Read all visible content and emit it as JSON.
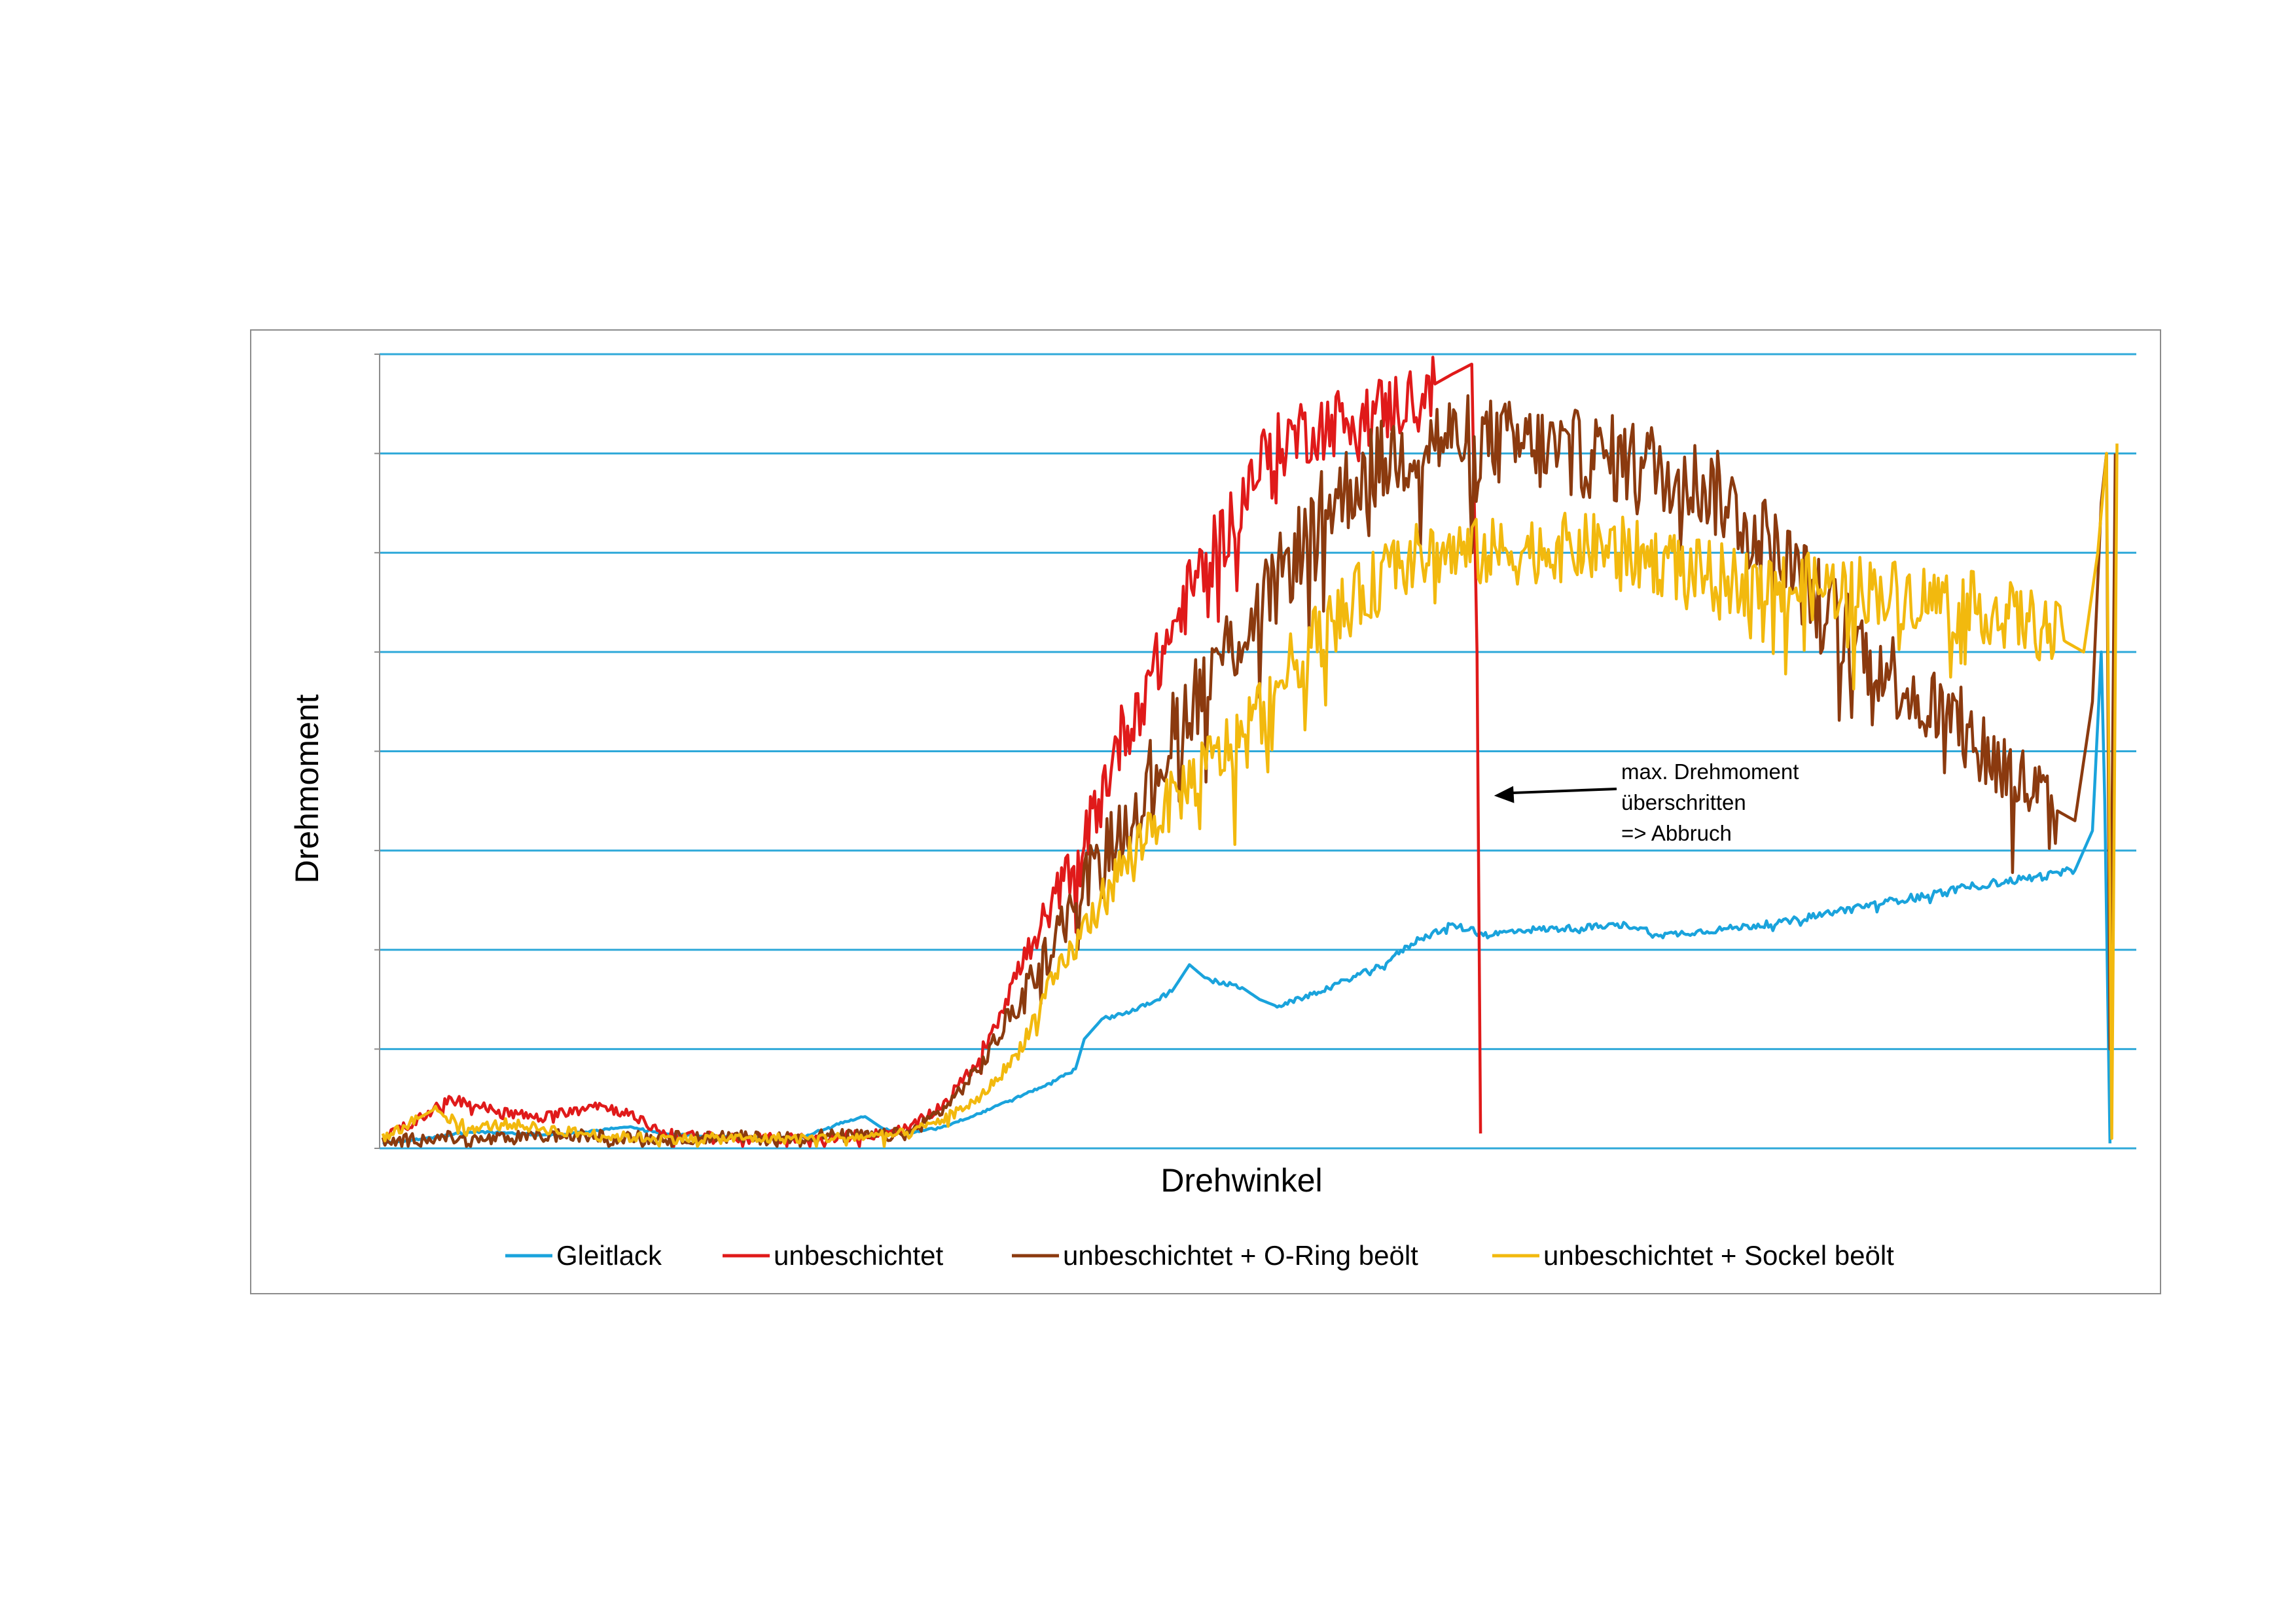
{
  "chart_data": {
    "type": "line",
    "xlabel": "Drehwinkel",
    "ylabel": "Drehmoment",
    "x_domain": [
      0,
      100
    ],
    "y_domain": [
      0,
      8
    ],
    "gridline_count": 8,
    "gridline_color": "#2fa9d9",
    "legend_position": "bottom",
    "series": [
      {
        "name": "Gleitlack",
        "color": "#1aa3dc",
        "noise": 0.06,
        "points": [
          [
            0,
            0.05
          ],
          [
            2.5,
            0.1
          ],
          [
            5,
            0.17
          ],
          [
            7.5,
            0.15
          ],
          [
            10,
            0.13
          ],
          [
            14,
            0.22
          ],
          [
            16,
            0.15
          ],
          [
            19,
            0.12
          ],
          [
            22,
            0.1
          ],
          [
            24,
            0.12
          ],
          [
            26,
            0.25
          ],
          [
            27.5,
            0.32
          ],
          [
            28.5,
            0.2
          ],
          [
            30,
            0.15
          ],
          [
            32,
            0.22
          ],
          [
            34,
            0.35
          ],
          [
            36,
            0.5
          ],
          [
            38,
            0.65
          ],
          [
            39.5,
            0.8
          ],
          [
            40,
            1.1
          ],
          [
            41,
            1.3
          ],
          [
            43,
            1.4
          ],
          [
            45,
            1.58
          ],
          [
            46,
            1.85
          ],
          [
            47,
            1.7
          ],
          [
            49,
            1.62
          ],
          [
            50,
            1.5
          ],
          [
            51,
            1.43
          ],
          [
            53,
            1.55
          ],
          [
            55,
            1.7
          ],
          [
            57,
            1.85
          ],
          [
            59,
            2.1
          ],
          [
            61,
            2.25
          ],
          [
            63,
            2.15
          ],
          [
            65,
            2.2
          ],
          [
            68,
            2.22
          ],
          [
            71,
            2.25
          ],
          [
            73,
            2.15
          ],
          [
            76,
            2.2
          ],
          [
            80,
            2.28
          ],
          [
            84,
            2.43
          ],
          [
            88,
            2.55
          ],
          [
            91,
            2.65
          ],
          [
            95,
            2.75
          ],
          [
            96.5,
            2.8
          ],
          [
            97.5,
            3.2
          ],
          [
            98,
            5.0
          ],
          [
            98.2,
            3.5
          ],
          [
            98.5,
            0.05
          ]
        ]
      },
      {
        "name": "unbeschichtet",
        "color": "#e01a1a",
        "noise": 0.35,
        "points": [
          [
            0,
            0.1
          ],
          [
            2,
            0.3
          ],
          [
            4,
            0.5
          ],
          [
            6,
            0.4
          ],
          [
            9,
            0.3
          ],
          [
            12,
            0.45
          ],
          [
            14,
            0.35
          ],
          [
            16,
            0.15
          ],
          [
            18,
            0.12
          ],
          [
            21,
            0.1
          ],
          [
            24,
            0.1
          ],
          [
            26,
            0.12
          ],
          [
            28,
            0.14
          ],
          [
            30,
            0.2
          ],
          [
            32,
            0.45
          ],
          [
            34,
            0.9
          ],
          [
            36,
            1.7
          ],
          [
            38,
            2.4
          ],
          [
            40,
            3.1
          ],
          [
            42,
            4.1
          ],
          [
            44,
            4.8
          ],
          [
            46,
            5.6
          ],
          [
            48,
            6.2
          ],
          [
            50,
            6.9
          ],
          [
            52,
            7.2
          ],
          [
            54,
            7.3
          ],
          [
            56,
            7.4
          ],
          [
            58,
            7.5
          ],
          [
            60,
            7.7
          ],
          [
            61,
            7.8
          ],
          [
            62.1,
            7.9
          ],
          [
            62.4,
            5.0
          ],
          [
            62.6,
            0.15
          ]
        ]
      },
      {
        "name": "unbeschichtet + O-Ring beölt",
        "color": "#8b3a0f",
        "noise": 0.45,
        "points": [
          [
            0,
            0.05
          ],
          [
            3,
            0.12
          ],
          [
            5,
            0.08
          ],
          [
            7,
            0.1
          ],
          [
            10,
            0.13
          ],
          [
            13,
            0.12
          ],
          [
            16,
            0.1
          ],
          [
            19,
            0.12
          ],
          [
            22,
            0.1
          ],
          [
            25,
            0.13
          ],
          [
            28,
            0.12
          ],
          [
            30,
            0.15
          ],
          [
            32,
            0.4
          ],
          [
            34,
            0.8
          ],
          [
            36,
            1.4
          ],
          [
            38,
            2.0
          ],
          [
            40,
            2.7
          ],
          [
            42,
            3.2
          ],
          [
            44,
            3.8
          ],
          [
            46,
            4.5
          ],
          [
            48,
            5.0
          ],
          [
            50,
            5.4
          ],
          [
            52,
            6.0
          ],
          [
            54,
            6.5
          ],
          [
            56,
            6.8
          ],
          [
            58,
            7.0
          ],
          [
            60,
            7.15
          ],
          [
            62,
            7.15
          ],
          [
            64,
            7.1
          ],
          [
            66,
            7.05
          ],
          [
            68,
            7.0
          ],
          [
            70,
            6.95
          ],
          [
            72,
            6.9
          ],
          [
            74,
            6.8
          ],
          [
            76,
            6.6
          ],
          [
            78,
            6.3
          ],
          [
            80,
            5.9
          ],
          [
            82,
            5.5
          ],
          [
            84,
            5.1
          ],
          [
            86,
            4.8
          ],
          [
            88,
            4.5
          ],
          [
            90,
            4.2
          ],
          [
            92,
            3.9
          ],
          [
            94,
            3.6
          ],
          [
            95.5,
            3.4
          ],
          [
            96.5,
            3.3
          ],
          [
            97.5,
            4.5
          ],
          [
            98,
            6.5
          ],
          [
            98.3,
            7.0
          ],
          [
            98.5,
            1.0
          ],
          [
            98.8,
            7.0
          ]
        ]
      },
      {
        "name": "unbeschichtet + Sockel beölt",
        "color": "#f2b90e",
        "noise": 0.35,
        "points": [
          [
            0,
            0.1
          ],
          [
            2,
            0.3
          ],
          [
            3,
            0.4
          ],
          [
            5,
            0.2
          ],
          [
            7,
            0.25
          ],
          [
            10,
            0.18
          ],
          [
            13,
            0.12
          ],
          [
            16,
            0.1
          ],
          [
            20,
            0.1
          ],
          [
            24,
            0.1
          ],
          [
            28,
            0.12
          ],
          [
            30,
            0.15
          ],
          [
            32,
            0.3
          ],
          [
            34,
            0.5
          ],
          [
            36,
            0.9
          ],
          [
            38,
            1.6
          ],
          [
            40,
            2.2
          ],
          [
            42,
            2.8
          ],
          [
            44,
            3.3
          ],
          [
            46,
            3.7
          ],
          [
            48,
            4.0
          ],
          [
            50,
            4.4
          ],
          [
            52,
            4.9
          ],
          [
            54,
            5.3
          ],
          [
            56,
            5.6
          ],
          [
            58,
            5.9
          ],
          [
            60,
            6.0
          ],
          [
            62,
            6.0
          ],
          [
            64,
            6.0
          ],
          [
            66,
            6.05
          ],
          [
            68,
            6.05
          ],
          [
            70,
            6.05
          ],
          [
            72,
            5.95
          ],
          [
            74,
            5.85
          ],
          [
            76,
            5.75
          ],
          [
            78,
            5.7
          ],
          [
            80,
            5.65
          ],
          [
            82,
            5.65
          ],
          [
            84,
            5.65
          ],
          [
            86,
            5.6
          ],
          [
            88,
            5.55
          ],
          [
            90,
            5.5
          ],
          [
            92,
            5.4
          ],
          [
            94,
            5.3
          ],
          [
            96,
            5.1
          ],
          [
            97,
            5.0
          ],
          [
            97.8,
            6.0
          ],
          [
            98.3,
            7.0
          ],
          [
            98.6,
            0.1
          ],
          [
            98.9,
            7.1
          ]
        ]
      }
    ],
    "annotation": {
      "lines": [
        "max. Drehmoment",
        "überschritten",
        "=> Abbruch"
      ],
      "target_x": 63,
      "target_y": 3.5
    }
  }
}
